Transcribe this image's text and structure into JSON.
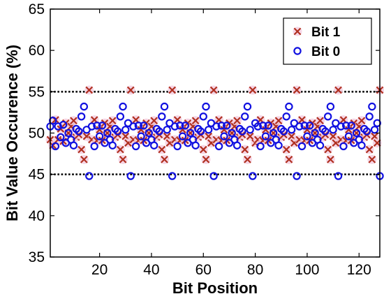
{
  "chart_data": {
    "type": "scatter",
    "xlabel": "Bit Position",
    "ylabel": "Bit Value Occurence (%)",
    "xlim": [
      1,
      128
    ],
    "ylim": [
      35,
      65
    ],
    "xticks": [
      20,
      40,
      60,
      80,
      100,
      120
    ],
    "yticks": [
      35,
      40,
      45,
      50,
      55,
      60,
      65
    ],
    "reference_lines": [
      45,
      55
    ],
    "grid": false,
    "legend_position": "top-right",
    "colors": {
      "bit1": "#b03020",
      "bit0": "#1010e0",
      "bit1_halo": "#f4cfe2"
    },
    "series": [
      {
        "name": "Bit 1",
        "marker": "x",
        "x": [
          1,
          2,
          3,
          4,
          5,
          6,
          7,
          8,
          9,
          10,
          11,
          12,
          13,
          14,
          15,
          16,
          17,
          18,
          19,
          20,
          21,
          22,
          23,
          24,
          25,
          26,
          27,
          28,
          29,
          30,
          31,
          32,
          33,
          34,
          35,
          36,
          37,
          38,
          39,
          40,
          41,
          42,
          43,
          44,
          45,
          46,
          47,
          48,
          49,
          50,
          51,
          52,
          53,
          54,
          55,
          56,
          57,
          58,
          59,
          60,
          61,
          62,
          63,
          64,
          65,
          66,
          67,
          68,
          69,
          70,
          71,
          72,
          73,
          74,
          75,
          76,
          77,
          78,
          79,
          80,
          81,
          82,
          83,
          84,
          85,
          86,
          87,
          88,
          89,
          90,
          91,
          92,
          93,
          94,
          95,
          96,
          97,
          98,
          99,
          100,
          101,
          102,
          103,
          104,
          105,
          106,
          107,
          108,
          109,
          110,
          111,
          112,
          113,
          114,
          115,
          116,
          117,
          118,
          119,
          120,
          121,
          122,
          123,
          124,
          125,
          126,
          127,
          128
        ],
        "y": [
          49.2,
          48.5,
          51.6,
          49.2,
          50.5,
          49.0,
          51.2,
          50.0,
          50.8,
          51.5,
          49.5,
          49.8,
          48.0,
          46.8,
          49.6,
          55.2,
          49.2,
          51.6,
          49.1,
          50.4,
          49.1,
          51.2,
          50.0,
          50.8,
          51.5,
          49.5,
          49.8,
          48.0,
          46.8,
          49.6,
          48.8,
          55.2,
          49.2,
          51.6,
          49.1,
          50.4,
          49.1,
          51.2,
          50.0,
          50.8,
          51.5,
          49.5,
          49.8,
          48.0,
          46.8,
          49.6,
          48.8,
          55.2,
          49.2,
          51.6,
          49.1,
          50.4,
          49.1,
          51.2,
          50.0,
          50.8,
          51.5,
          49.5,
          49.8,
          48.0,
          46.8,
          49.6,
          48.8,
          55.2,
          49.2,
          51.6,
          49.1,
          50.4,
          49.1,
          51.2,
          50.0,
          50.8,
          51.5,
          49.5,
          49.8,
          48.0,
          46.8,
          49.6,
          55.2,
          48.8,
          49.2,
          51.6,
          49.1,
          50.4,
          49.1,
          51.2,
          50.0,
          50.8,
          51.5,
          49.5,
          49.8,
          48.0,
          46.8,
          49.6,
          48.8,
          55.2,
          49.2,
          51.6,
          49.1,
          50.4,
          49.1,
          51.2,
          50.0,
          50.8,
          51.5,
          49.5,
          49.8,
          48.0,
          46.8,
          49.6,
          48.8,
          55.2,
          49.2,
          51.6,
          49.1,
          50.4,
          49.1,
          51.2,
          50.0,
          50.8,
          51.5,
          49.5,
          49.8,
          48.0,
          46.8,
          49.6,
          48.8,
          55.2
        ]
      },
      {
        "name": "Bit 0",
        "marker": "o",
        "x": [
          1,
          2,
          3,
          4,
          5,
          6,
          7,
          8,
          9,
          10,
          11,
          12,
          13,
          14,
          15,
          16,
          17,
          18,
          19,
          20,
          21,
          22,
          23,
          24,
          25,
          26,
          27,
          28,
          29,
          30,
          31,
          32,
          33,
          34,
          35,
          36,
          37,
          38,
          39,
          40,
          41,
          42,
          43,
          44,
          45,
          46,
          47,
          48,
          49,
          50,
          51,
          52,
          53,
          54,
          55,
          56,
          57,
          58,
          59,
          60,
          61,
          62,
          63,
          64,
          65,
          66,
          67,
          68,
          69,
          70,
          71,
          72,
          73,
          74,
          75,
          76,
          77,
          78,
          79,
          80,
          81,
          82,
          83,
          84,
          85,
          86,
          87,
          88,
          89,
          90,
          91,
          92,
          93,
          94,
          95,
          96,
          97,
          98,
          99,
          100,
          101,
          102,
          103,
          104,
          105,
          106,
          107,
          108,
          109,
          110,
          111,
          112,
          113,
          114,
          115,
          116,
          117,
          118,
          119,
          120,
          121,
          122,
          123,
          124,
          125,
          126,
          127,
          128
        ],
        "y": [
          50.8,
          51.5,
          48.4,
          50.8,
          49.5,
          51.0,
          48.8,
          50.0,
          49.2,
          48.5,
          50.5,
          50.2,
          52.0,
          53.2,
          50.4,
          44.8,
          50.8,
          48.4,
          50.9,
          49.6,
          50.9,
          48.8,
          50.0,
          49.2,
          48.5,
          50.5,
          50.2,
          52.0,
          53.2,
          50.4,
          51.2,
          44.8,
          50.8,
          48.4,
          50.9,
          49.6,
          50.9,
          48.8,
          50.0,
          49.2,
          48.5,
          50.5,
          50.2,
          52.0,
          53.2,
          50.4,
          51.2,
          44.8,
          50.8,
          48.4,
          50.9,
          49.6,
          50.9,
          48.8,
          50.0,
          49.2,
          48.5,
          50.5,
          50.2,
          52.0,
          53.2,
          50.4,
          51.2,
          44.8,
          50.8,
          48.4,
          50.9,
          49.6,
          50.9,
          48.8,
          50.0,
          49.2,
          48.5,
          50.5,
          50.2,
          52.0,
          53.2,
          50.4,
          44.8,
          51.2,
          50.8,
          48.4,
          50.9,
          49.6,
          50.9,
          48.8,
          50.0,
          49.2,
          48.5,
          50.5,
          50.2,
          52.0,
          53.2,
          50.4,
          51.2,
          44.8,
          50.8,
          48.4,
          50.9,
          49.6,
          50.9,
          48.8,
          50.0,
          49.2,
          48.5,
          50.5,
          50.2,
          52.0,
          53.2,
          50.4,
          51.2,
          44.8,
          50.8,
          48.4,
          50.9,
          49.6,
          50.9,
          48.8,
          50.0,
          49.2,
          48.5,
          50.5,
          50.2,
          52.0,
          53.2,
          50.4,
          51.2,
          44.8
        ]
      }
    ]
  }
}
